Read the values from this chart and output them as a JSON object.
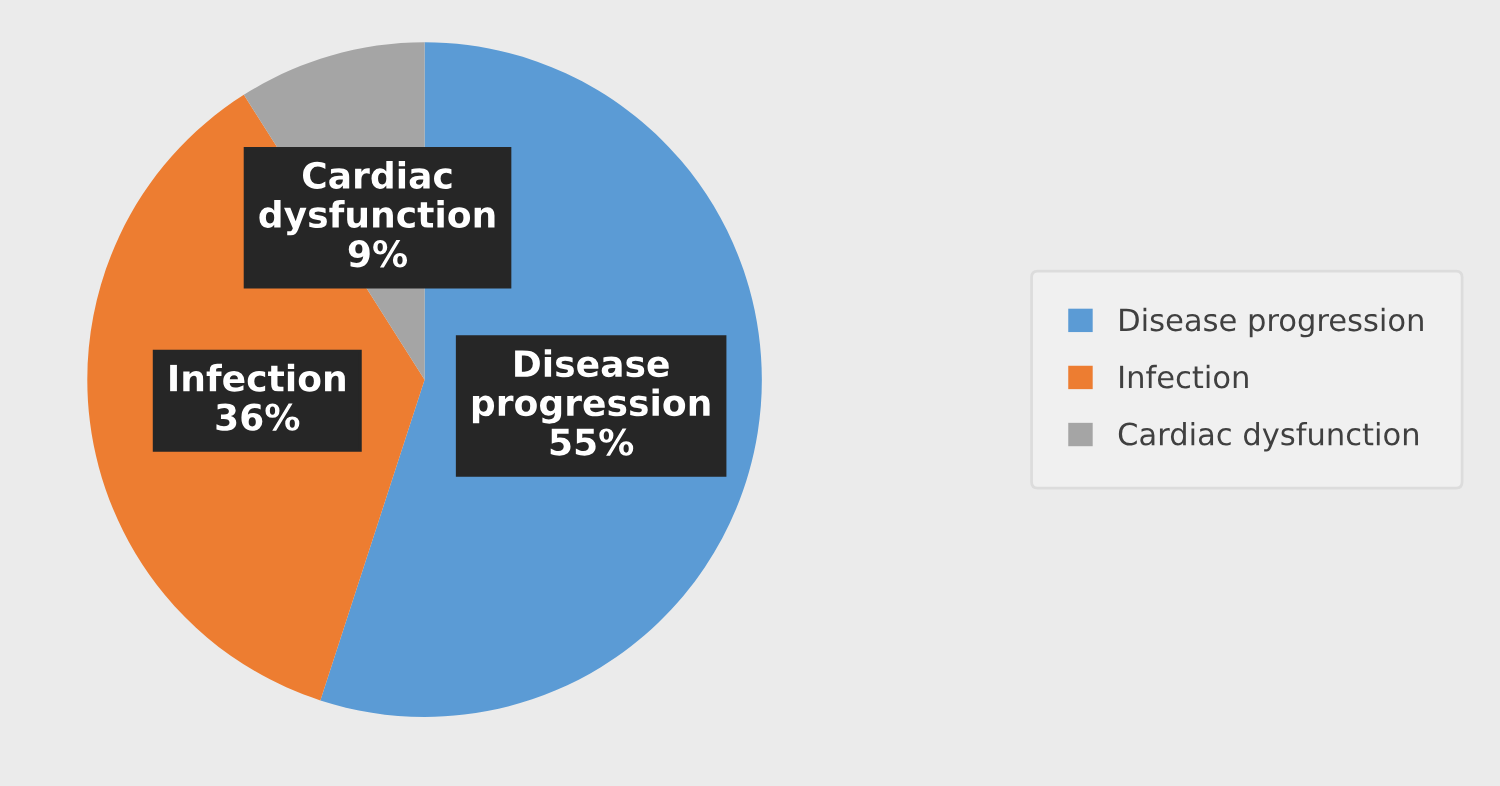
{
  "chart_data": {
    "type": "pie",
    "categories": [
      "Disease progression",
      "Infection",
      "Cardiac dysfunction"
    ],
    "values": [
      55,
      36,
      9
    ],
    "colors": [
      "#5b9bd5",
      "#ed7d31",
      "#a5a5a5"
    ],
    "value_labels": [
      "55%",
      "36%",
      "9%"
    ],
    "legend": "right"
  }
}
